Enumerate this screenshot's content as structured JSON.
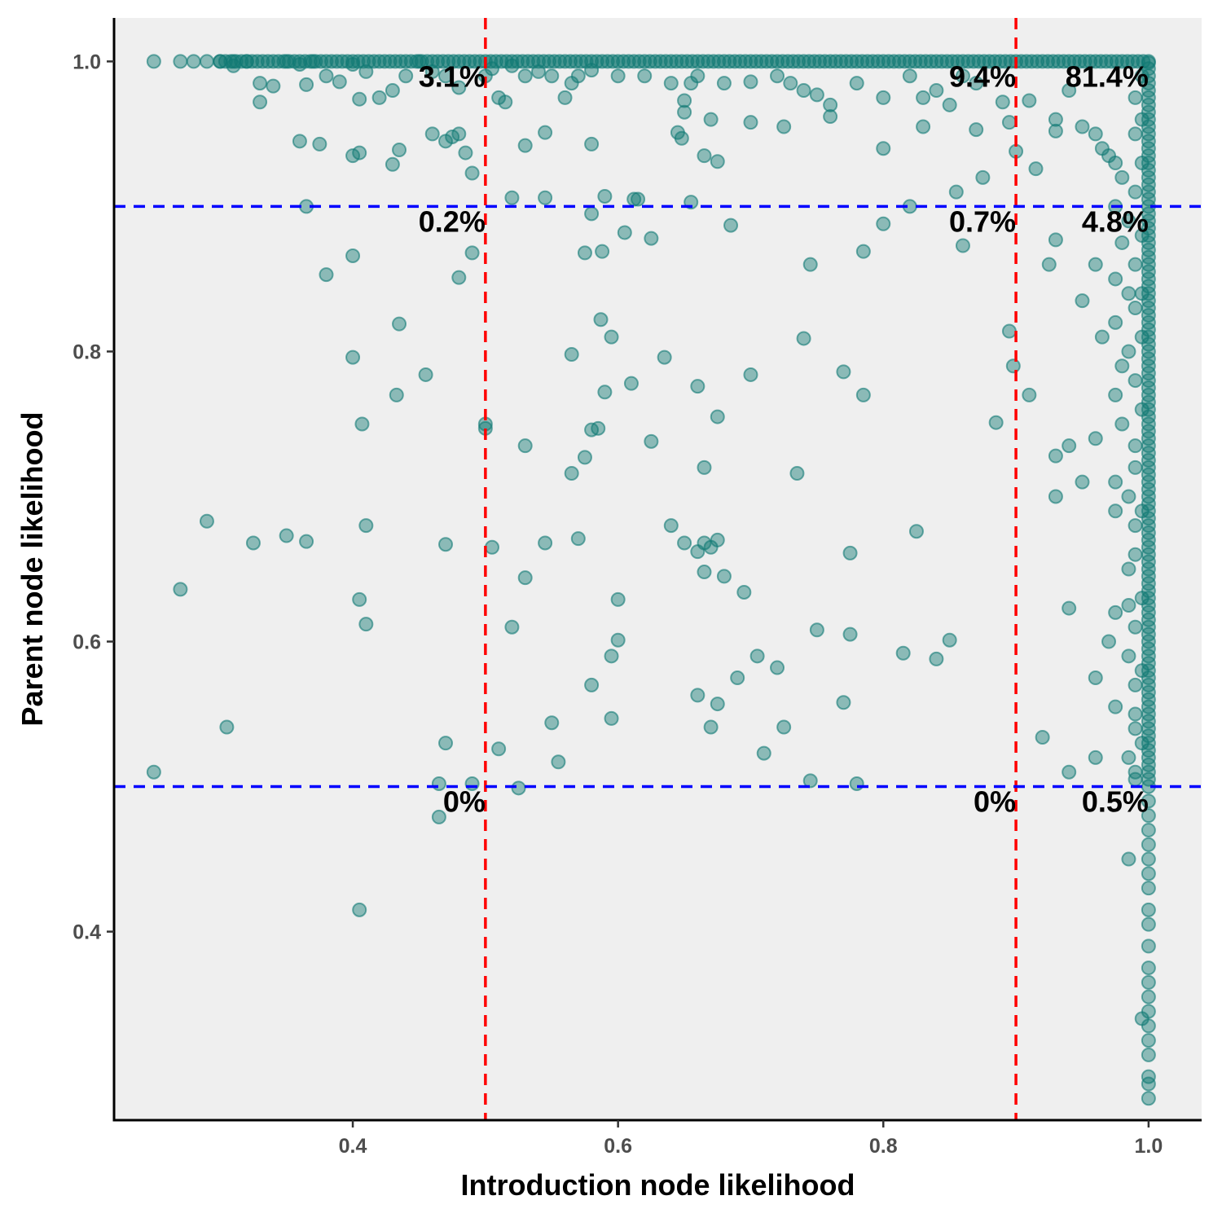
{
  "chart_data": {
    "type": "scatter",
    "title": "",
    "xlabel": "Introduction node likelihood",
    "ylabel": "Parent node likelihood",
    "xlim": [
      0.22,
      1.04
    ],
    "ylim": [
      0.27,
      1.03
    ],
    "x_ticks": [
      0.4,
      0.6,
      0.8,
      1.0
    ],
    "x_tick_labels": [
      "0.4",
      "0.6",
      "0.8",
      "1.0"
    ],
    "y_ticks": [
      0.4,
      0.6,
      0.8,
      1.0
    ],
    "y_tick_labels": [
      "0.4",
      "0.6",
      "0.8",
      "1.0"
    ],
    "grid": false,
    "colors": {
      "panel": "#efefef",
      "point_fill": "#117a74",
      "point_stroke": "#117a74",
      "vline": "#ff0000",
      "hline": "#0000ff"
    },
    "vlines": [
      0.5,
      0.9
    ],
    "hlines": [
      0.5,
      0.9
    ],
    "quadrant_labels": [
      {
        "x": 0.5,
        "y": 1.0,
        "text": "3.1%"
      },
      {
        "x": 0.9,
        "y": 1.0,
        "text": "9.4%"
      },
      {
        "x": 1.0,
        "y": 1.0,
        "text": "81.4%"
      },
      {
        "x": 0.5,
        "y": 0.9,
        "text": "0.2%"
      },
      {
        "x": 0.9,
        "y": 0.9,
        "text": "0.7%"
      },
      {
        "x": 1.0,
        "y": 0.9,
        "text": "4.8%"
      },
      {
        "x": 0.5,
        "y": 0.5,
        "text": "0%"
      },
      {
        "x": 0.9,
        "y": 0.5,
        "text": "0%"
      },
      {
        "x": 1.0,
        "y": 0.5,
        "text": "0.5%"
      }
    ],
    "points": [
      [
        0.25,
        1.0
      ],
      [
        0.27,
        1.0
      ],
      [
        0.28,
        1.0
      ],
      [
        0.29,
        1.0
      ],
      [
        0.3,
        1.0
      ],
      [
        0.31,
        1.0
      ],
      [
        0.31,
        0.997
      ],
      [
        0.32,
        1.0
      ],
      [
        0.33,
        0.985
      ],
      [
        0.33,
        0.972
      ],
      [
        0.34,
        0.983
      ],
      [
        0.35,
        1.0
      ],
      [
        0.36,
        0.998
      ],
      [
        0.365,
        0.984
      ],
      [
        0.37,
        1.0
      ],
      [
        0.38,
        0.99
      ],
      [
        0.39,
        0.986
      ],
      [
        0.4,
        0.998
      ],
      [
        0.405,
        0.974
      ],
      [
        0.41,
        0.993
      ],
      [
        0.42,
        0.975
      ],
      [
        0.43,
        0.98
      ],
      [
        0.44,
        0.99
      ],
      [
        0.45,
        1.0
      ],
      [
        0.46,
        0.993
      ],
      [
        0.47,
        0.99
      ],
      [
        0.48,
        0.982
      ],
      [
        0.5,
        0.99
      ],
      [
        0.505,
        0.995
      ],
      [
        0.51,
        0.975
      ],
      [
        0.515,
        0.972
      ],
      [
        0.52,
        0.997
      ],
      [
        0.53,
        0.99
      ],
      [
        0.54,
        0.993
      ],
      [
        0.55,
        0.99
      ],
      [
        0.56,
        0.975
      ],
      [
        0.565,
        0.985
      ],
      [
        0.57,
        0.99
      ],
      [
        0.58,
        0.994
      ],
      [
        0.6,
        0.99
      ],
      [
        0.62,
        0.99
      ],
      [
        0.64,
        0.985
      ],
      [
        0.65,
        0.973
      ],
      [
        0.655,
        0.985
      ],
      [
        0.66,
        0.99
      ],
      [
        0.68,
        0.985
      ],
      [
        0.7,
        0.986
      ],
      [
        0.72,
        0.99
      ],
      [
        0.73,
        0.985
      ],
      [
        0.74,
        0.98
      ],
      [
        0.75,
        0.977
      ],
      [
        0.76,
        0.97
      ],
      [
        0.78,
        0.985
      ],
      [
        0.8,
        0.975
      ],
      [
        0.82,
        0.99
      ],
      [
        0.83,
        0.975
      ],
      [
        0.84,
        0.98
      ],
      [
        0.85,
        0.97
      ],
      [
        0.86,
        0.99
      ],
      [
        0.87,
        0.985
      ],
      [
        0.89,
        0.972
      ],
      [
        0.91,
        0.973
      ],
      [
        0.93,
        0.96
      ],
      [
        0.94,
        0.98
      ],
      [
        0.36,
        0.945
      ],
      [
        0.375,
        0.943
      ],
      [
        0.4,
        0.935
      ],
      [
        0.405,
        0.937
      ],
      [
        0.43,
        0.929
      ],
      [
        0.435,
        0.939
      ],
      [
        0.46,
        0.95
      ],
      [
        0.47,
        0.945
      ],
      [
        0.475,
        0.948
      ],
      [
        0.48,
        0.95
      ],
      [
        0.485,
        0.937
      ],
      [
        0.49,
        0.923
      ],
      [
        0.53,
        0.942
      ],
      [
        0.545,
        0.951
      ],
      [
        0.58,
        0.943
      ],
      [
        0.615,
        0.905
      ],
      [
        0.645,
        0.951
      ],
      [
        0.648,
        0.947
      ],
      [
        0.65,
        0.965
      ],
      [
        0.665,
        0.935
      ],
      [
        0.67,
        0.96
      ],
      [
        0.675,
        0.931
      ],
      [
        0.7,
        0.958
      ],
      [
        0.725,
        0.955
      ],
      [
        0.76,
        0.962
      ],
      [
        0.8,
        0.94
      ],
      [
        0.83,
        0.955
      ],
      [
        0.87,
        0.953
      ],
      [
        0.895,
        0.958
      ],
      [
        0.9,
        0.938
      ],
      [
        0.915,
        0.926
      ],
      [
        0.93,
        0.952
      ],
      [
        0.95,
        0.955
      ],
      [
        0.365,
        0.9
      ],
      [
        0.52,
        0.906
      ],
      [
        0.545,
        0.906
      ],
      [
        0.59,
        0.907
      ],
      [
        0.612,
        0.905
      ],
      [
        0.655,
        0.903
      ],
      [
        0.82,
        0.9
      ],
      [
        0.855,
        0.91
      ],
      [
        0.875,
        0.92
      ],
      [
        0.58,
        0.895
      ],
      [
        0.605,
        0.882
      ],
      [
        0.625,
        0.878
      ],
      [
        0.685,
        0.887
      ],
      [
        0.8,
        0.888
      ],
      [
        0.86,
        0.873
      ],
      [
        0.93,
        0.877
      ],
      [
        0.38,
        0.853
      ],
      [
        0.4,
        0.866
      ],
      [
        0.48,
        0.851
      ],
      [
        0.49,
        0.868
      ],
      [
        0.575,
        0.868
      ],
      [
        0.588,
        0.869
      ],
      [
        0.745,
        0.86
      ],
      [
        0.785,
        0.869
      ],
      [
        0.925,
        0.86
      ],
      [
        0.435,
        0.819
      ],
      [
        0.4,
        0.796
      ],
      [
        0.455,
        0.784
      ],
      [
        0.433,
        0.77
      ],
      [
        0.407,
        0.75
      ],
      [
        0.565,
        0.798
      ],
      [
        0.587,
        0.822
      ],
      [
        0.595,
        0.81
      ],
      [
        0.61,
        0.778
      ],
      [
        0.635,
        0.796
      ],
      [
        0.59,
        0.772
      ],
      [
        0.66,
        0.776
      ],
      [
        0.7,
        0.784
      ],
      [
        0.74,
        0.809
      ],
      [
        0.77,
        0.786
      ],
      [
        0.785,
        0.77
      ],
      [
        0.895,
        0.814
      ],
      [
        0.898,
        0.79
      ],
      [
        0.885,
        0.751
      ],
      [
        0.91,
        0.77
      ],
      [
        0.5,
        0.75
      ],
      [
        0.5,
        0.747
      ],
      [
        0.58,
        0.746
      ],
      [
        0.585,
        0.747
      ],
      [
        0.53,
        0.735
      ],
      [
        0.565,
        0.716
      ],
      [
        0.575,
        0.727
      ],
      [
        0.625,
        0.738
      ],
      [
        0.665,
        0.72
      ],
      [
        0.675,
        0.755
      ],
      [
        0.735,
        0.716
      ],
      [
        0.94,
        0.735
      ],
      [
        0.93,
        0.728
      ],
      [
        0.93,
        0.7
      ],
      [
        0.94,
        0.623
      ],
      [
        0.29,
        0.683
      ],
      [
        0.27,
        0.636
      ],
      [
        0.325,
        0.668
      ],
      [
        0.35,
        0.673
      ],
      [
        0.365,
        0.669
      ],
      [
        0.41,
        0.68
      ],
      [
        0.405,
        0.629
      ],
      [
        0.41,
        0.612
      ],
      [
        0.47,
        0.667
      ],
      [
        0.505,
        0.665
      ],
      [
        0.53,
        0.644
      ],
      [
        0.545,
        0.668
      ],
      [
        0.57,
        0.671
      ],
      [
        0.6,
        0.629
      ],
      [
        0.52,
        0.61
      ],
      [
        0.6,
        0.601
      ],
      [
        0.595,
        0.59
      ],
      [
        0.64,
        0.68
      ],
      [
        0.65,
        0.668
      ],
      [
        0.66,
        0.662
      ],
      [
        0.665,
        0.668
      ],
      [
        0.665,
        0.648
      ],
      [
        0.67,
        0.665
      ],
      [
        0.675,
        0.67
      ],
      [
        0.68,
        0.645
      ],
      [
        0.695,
        0.634
      ],
      [
        0.775,
        0.661
      ],
      [
        0.825,
        0.676
      ],
      [
        0.75,
        0.608
      ],
      [
        0.775,
        0.605
      ],
      [
        0.705,
        0.59
      ],
      [
        0.72,
        0.582
      ],
      [
        0.815,
        0.592
      ],
      [
        0.84,
        0.588
      ],
      [
        0.85,
        0.601
      ],
      [
        0.58,
        0.57
      ],
      [
        0.595,
        0.547
      ],
      [
        0.66,
        0.563
      ],
      [
        0.675,
        0.557
      ],
      [
        0.69,
        0.575
      ],
      [
        0.725,
        0.541
      ],
      [
        0.77,
        0.558
      ],
      [
        0.25,
        0.51
      ],
      [
        0.305,
        0.541
      ],
      [
        0.47,
        0.53
      ],
      [
        0.51,
        0.526
      ],
      [
        0.55,
        0.544
      ],
      [
        0.555,
        0.517
      ],
      [
        0.67,
        0.541
      ],
      [
        0.71,
        0.523
      ],
      [
        0.465,
        0.502
      ],
      [
        0.49,
        0.502
      ],
      [
        0.525,
        0.499
      ],
      [
        0.745,
        0.504
      ],
      [
        0.78,
        0.502
      ],
      [
        0.92,
        0.534
      ],
      [
        0.94,
        0.51
      ],
      [
        0.465,
        0.479
      ],
      [
        0.405,
        0.415
      ],
      [
        0.96,
        0.95
      ],
      [
        0.965,
        0.94
      ],
      [
        0.97,
        0.935
      ],
      [
        0.975,
        0.93
      ],
      [
        0.98,
        0.92
      ],
      [
        0.975,
        0.9
      ],
      [
        0.985,
        0.89
      ],
      [
        0.98,
        0.875
      ],
      [
        0.96,
        0.86
      ],
      [
        0.975,
        0.85
      ],
      [
        0.985,
        0.84
      ],
      [
        0.95,
        0.835
      ],
      [
        0.965,
        0.81
      ],
      [
        0.975,
        0.82
      ],
      [
        0.98,
        0.79
      ],
      [
        0.985,
        0.8
      ],
      [
        0.975,
        0.77
      ],
      [
        0.98,
        0.75
      ],
      [
        0.96,
        0.74
      ],
      [
        0.99,
        0.735
      ],
      [
        0.95,
        0.71
      ],
      [
        0.975,
        0.71
      ],
      [
        0.985,
        0.7
      ],
      [
        0.975,
        0.69
      ],
      [
        0.99,
        0.68
      ],
      [
        0.985,
        0.65
      ],
      [
        0.975,
        0.62
      ],
      [
        0.985,
        0.625
      ],
      [
        0.97,
        0.6
      ],
      [
        0.985,
        0.59
      ],
      [
        0.99,
        0.57
      ],
      [
        0.96,
        0.575
      ],
      [
        0.975,
        0.555
      ],
      [
        0.99,
        0.54
      ],
      [
        0.985,
        0.52
      ],
      [
        0.96,
        0.52
      ],
      [
        0.99,
        0.505
      ],
      [
        0.985,
        0.45
      ],
      [
        1.0,
        0.999
      ],
      [
        1.0,
        0.995
      ],
      [
        1.0,
        0.99
      ],
      [
        1.0,
        0.985
      ],
      [
        1.0,
        0.98
      ],
      [
        1.0,
        0.975
      ],
      [
        1.0,
        0.97
      ],
      [
        1.0,
        0.965
      ],
      [
        1.0,
        0.96
      ],
      [
        1.0,
        0.955
      ],
      [
        1.0,
        0.95
      ],
      [
        1.0,
        0.945
      ],
      [
        1.0,
        0.94
      ],
      [
        1.0,
        0.935
      ],
      [
        1.0,
        0.93
      ],
      [
        1.0,
        0.925
      ],
      [
        1.0,
        0.92
      ],
      [
        1.0,
        0.915
      ],
      [
        1.0,
        0.91
      ],
      [
        1.0,
        0.905
      ],
      [
        1.0,
        0.9
      ],
      [
        1.0,
        0.895
      ],
      [
        1.0,
        0.89
      ],
      [
        1.0,
        0.885
      ],
      [
        1.0,
        0.88
      ],
      [
        1.0,
        0.875
      ],
      [
        1.0,
        0.87
      ],
      [
        1.0,
        0.865
      ],
      [
        1.0,
        0.86
      ],
      [
        1.0,
        0.855
      ],
      [
        1.0,
        0.85
      ],
      [
        1.0,
        0.845
      ],
      [
        1.0,
        0.84
      ],
      [
        1.0,
        0.835
      ],
      [
        1.0,
        0.83
      ],
      [
        1.0,
        0.825
      ],
      [
        1.0,
        0.82
      ],
      [
        1.0,
        0.815
      ],
      [
        1.0,
        0.81
      ],
      [
        1.0,
        0.805
      ],
      [
        1.0,
        0.8
      ],
      [
        1.0,
        0.795
      ],
      [
        1.0,
        0.79
      ],
      [
        1.0,
        0.785
      ],
      [
        1.0,
        0.78
      ],
      [
        1.0,
        0.775
      ],
      [
        1.0,
        0.77
      ],
      [
        1.0,
        0.765
      ],
      [
        1.0,
        0.76
      ],
      [
        1.0,
        0.755
      ],
      [
        1.0,
        0.75
      ],
      [
        1.0,
        0.745
      ],
      [
        1.0,
        0.74
      ],
      [
        1.0,
        0.735
      ],
      [
        1.0,
        0.73
      ],
      [
        1.0,
        0.725
      ],
      [
        1.0,
        0.72
      ],
      [
        1.0,
        0.715
      ],
      [
        1.0,
        0.71
      ],
      [
        1.0,
        0.705
      ],
      [
        1.0,
        0.7
      ],
      [
        1.0,
        0.695
      ],
      [
        1.0,
        0.69
      ],
      [
        1.0,
        0.685
      ],
      [
        1.0,
        0.68
      ],
      [
        1.0,
        0.675
      ],
      [
        1.0,
        0.67
      ],
      [
        1.0,
        0.665
      ],
      [
        1.0,
        0.66
      ],
      [
        1.0,
        0.655
      ],
      [
        1.0,
        0.65
      ],
      [
        1.0,
        0.645
      ],
      [
        1.0,
        0.64
      ],
      [
        1.0,
        0.635
      ],
      [
        1.0,
        0.63
      ],
      [
        1.0,
        0.625
      ],
      [
        1.0,
        0.62
      ],
      [
        1.0,
        0.615
      ],
      [
        1.0,
        0.61
      ],
      [
        1.0,
        0.605
      ],
      [
        1.0,
        0.6
      ],
      [
        1.0,
        0.595
      ],
      [
        1.0,
        0.59
      ],
      [
        1.0,
        0.585
      ],
      [
        1.0,
        0.58
      ],
      [
        1.0,
        0.575
      ],
      [
        1.0,
        0.57
      ],
      [
        1.0,
        0.565
      ],
      [
        1.0,
        0.56
      ],
      [
        1.0,
        0.555
      ],
      [
        1.0,
        0.55
      ],
      [
        1.0,
        0.545
      ],
      [
        1.0,
        0.54
      ],
      [
        1.0,
        0.535
      ],
      [
        1.0,
        0.53
      ],
      [
        1.0,
        0.525
      ],
      [
        1.0,
        0.52
      ],
      [
        1.0,
        0.515
      ],
      [
        1.0,
        0.51
      ],
      [
        1.0,
        0.505
      ],
      [
        1.0,
        0.5
      ],
      [
        1.0,
        0.49
      ],
      [
        1.0,
        0.48
      ],
      [
        1.0,
        0.47
      ],
      [
        1.0,
        0.46
      ],
      [
        1.0,
        0.45
      ],
      [
        1.0,
        0.44
      ],
      [
        1.0,
        0.43
      ],
      [
        1.0,
        0.415
      ],
      [
        1.0,
        0.405
      ],
      [
        1.0,
        0.39
      ],
      [
        1.0,
        0.375
      ],
      [
        1.0,
        0.365
      ],
      [
        1.0,
        0.355
      ],
      [
        1.0,
        0.345
      ],
      [
        1.0,
        0.335
      ],
      [
        1.0,
        0.325
      ],
      [
        1.0,
        0.315
      ],
      [
        1.0,
        0.3
      ],
      [
        1.0,
        0.295
      ],
      [
        1.0,
        0.285
      ],
      [
        0.995,
        0.34
      ],
      [
        0.995,
        0.99
      ],
      [
        0.99,
        0.975
      ],
      [
        0.995,
        0.96
      ],
      [
        0.99,
        0.95
      ],
      [
        0.995,
        0.93
      ],
      [
        0.99,
        0.91
      ],
      [
        0.995,
        0.88
      ],
      [
        0.99,
        0.86
      ],
      [
        0.995,
        0.84
      ],
      [
        0.99,
        0.83
      ],
      [
        0.995,
        0.81
      ],
      [
        0.99,
        0.78
      ],
      [
        0.995,
        0.76
      ],
      [
        0.99,
        0.72
      ],
      [
        0.995,
        0.69
      ],
      [
        0.99,
        0.66
      ],
      [
        0.995,
        0.63
      ],
      [
        0.99,
        0.61
      ],
      [
        0.995,
        0.58
      ],
      [
        0.99,
        0.55
      ],
      [
        0.995,
        0.53
      ],
      [
        0.99,
        0.51
      ]
    ]
  }
}
